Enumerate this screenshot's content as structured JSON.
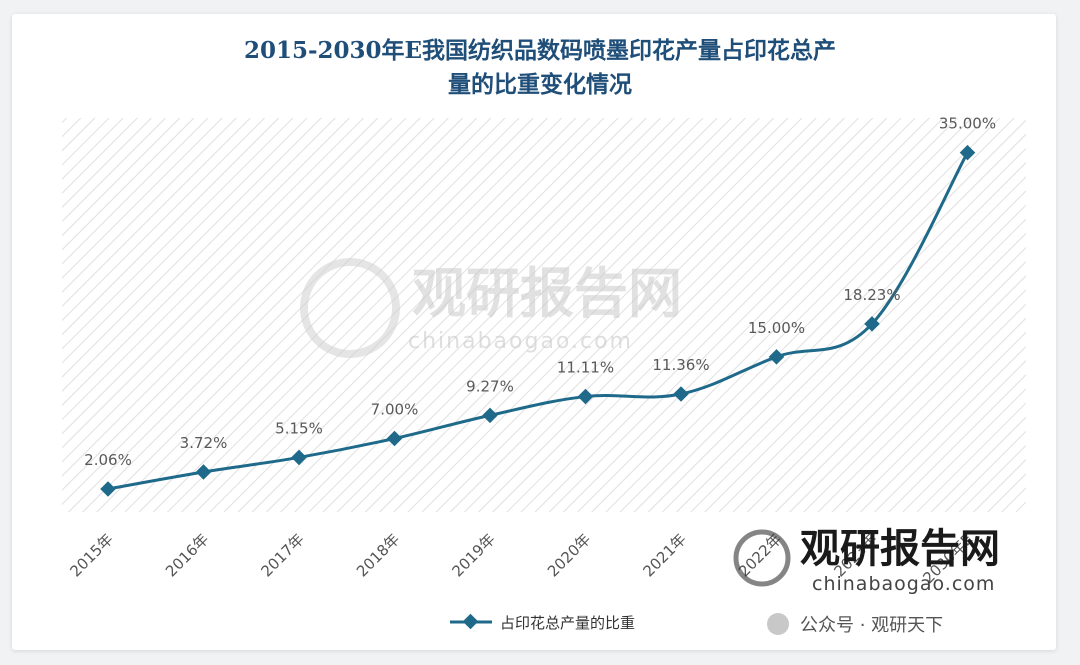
{
  "title_line1": "2015-2030年E我国纺织品数码喷墨印花产量占印花总产",
  "title_line2": "量的比重变化情况",
  "watermark": {
    "cn": "观研报告网",
    "en": "chinabaogao.com"
  },
  "footer_watermark": {
    "cn": "观研报告网",
    "en": "chinabaogao.com"
  },
  "wechat_credit": "公众号 · 观研天下",
  "colors": {
    "line": "#1f6a8a",
    "title": "#1f4e79",
    "hatch": "#dcdcdc"
  },
  "chart_data": {
    "type": "line",
    "categories": [
      "2015年",
      "2016年",
      "2017年",
      "2018年",
      "2019年",
      "2020年",
      "2021年",
      "2022年",
      "2023年",
      "2030年E"
    ],
    "series": [
      {
        "name": "占印花总产量的比重",
        "values": [
          2.06,
          3.72,
          5.15,
          7.0,
          9.27,
          11.11,
          11.36,
          15.0,
          18.23,
          35.0
        ],
        "labels": [
          "2.06%",
          "3.72%",
          "5.15%",
          "7.00%",
          "9.27%",
          "11.11%",
          "11.36%",
          "15.00%",
          "18.23%",
          "35.00%"
        ]
      }
    ],
    "ylim": [
      0,
      38
    ],
    "grid": false,
    "legend": "bottom",
    "marker": "diamond",
    "smooth": true
  }
}
